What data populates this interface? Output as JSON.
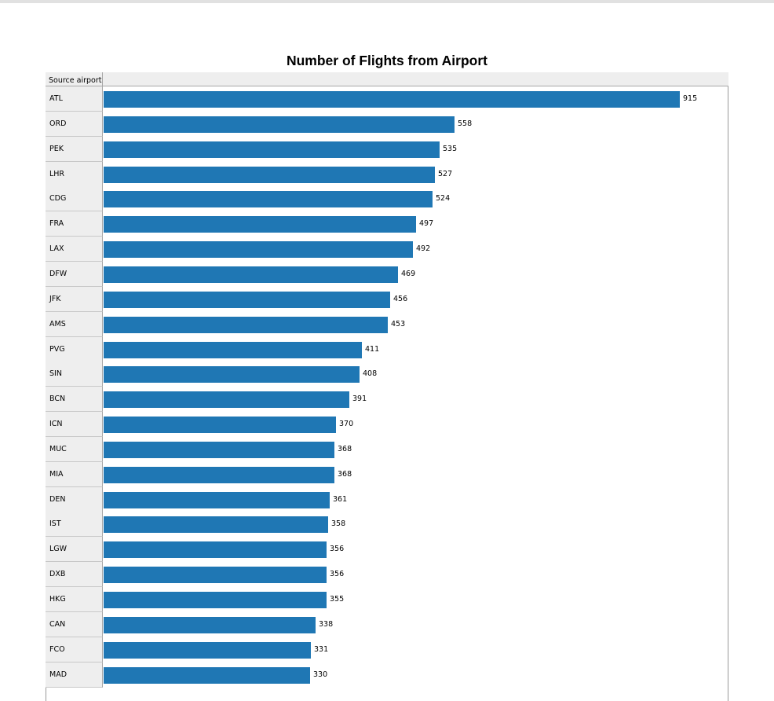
{
  "chart_data": {
    "type": "bar",
    "orientation": "horizontal",
    "title": "Number of Flights from Airport",
    "category_header": "Source airport",
    "categories": [
      "ATL",
      "ORD",
      "PEK",
      "LHR",
      "CDG",
      "FRA",
      "LAX",
      "DFW",
      "JFK",
      "AMS",
      "PVG",
      "SIN",
      "BCN",
      "ICN",
      "MUC",
      "MIA",
      "DEN",
      "IST",
      "LGW",
      "DXB",
      "HKG",
      "CAN",
      "FCO",
      "MAD"
    ],
    "values": [
      915,
      558,
      535,
      527,
      524,
      497,
      492,
      469,
      456,
      453,
      411,
      408,
      391,
      370,
      368,
      368,
      361,
      358,
      356,
      356,
      355,
      338,
      331,
      330
    ],
    "xlim": [
      0,
      915
    ],
    "bar_color": "#1f77b4",
    "data_labels": true,
    "grid": false
  }
}
